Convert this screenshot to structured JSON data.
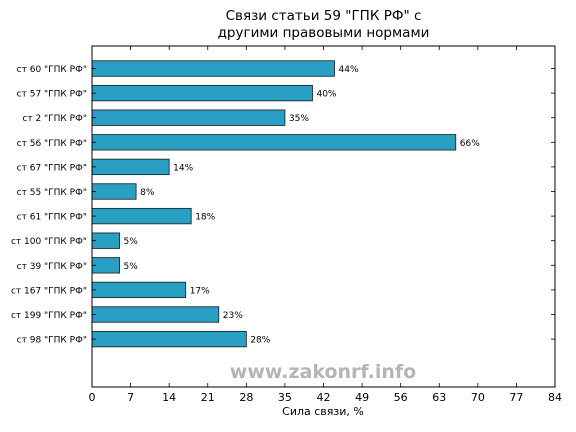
{
  "chart_data": {
    "type": "bar",
    "orientation": "horizontal",
    "title_lines": [
      "Связи статьи 59 \"ГПК РФ\" с",
      "другими правовыми нормами"
    ],
    "xlabel": "Сила связи, %",
    "ylabel": "",
    "xlim": [
      0,
      84
    ],
    "xticks": [
      0,
      7,
      14,
      21,
      28,
      35,
      42,
      49,
      56,
      63,
      70,
      77,
      84
    ],
    "categories": [
      "ст 60 \"ГПК РФ\"",
      "ст 57 \"ГПК РФ\"",
      "ст 2 \"ГПК РФ\"",
      "ст 56 \"ГПК РФ\"",
      "ст 67 \"ГПК РФ\"",
      "ст 55 \"ГПК РФ\"",
      "ст 61 \"ГПК РФ\"",
      "ст 100 \"ГПК РФ\"",
      "ст 39 \"ГПК РФ\"",
      "ст 167 \"ГПК РФ\"",
      "ст 199 \"ГПК РФ\"",
      "ст 98 \"ГПК РФ\""
    ],
    "values": [
      44,
      40,
      35,
      66,
      14,
      8,
      18,
      5,
      5,
      17,
      23,
      28
    ],
    "value_labels": [
      "44%",
      "40%",
      "35%",
      "66%",
      "14%",
      "8%",
      "18%",
      "5%",
      "5%",
      "17%",
      "23%",
      "28%"
    ],
    "grid": false,
    "legend": "none",
    "bar_color": "#2a9fc4",
    "bar_edge_color": "#1a1a1a",
    "watermark": "www.zakonrf.info"
  }
}
